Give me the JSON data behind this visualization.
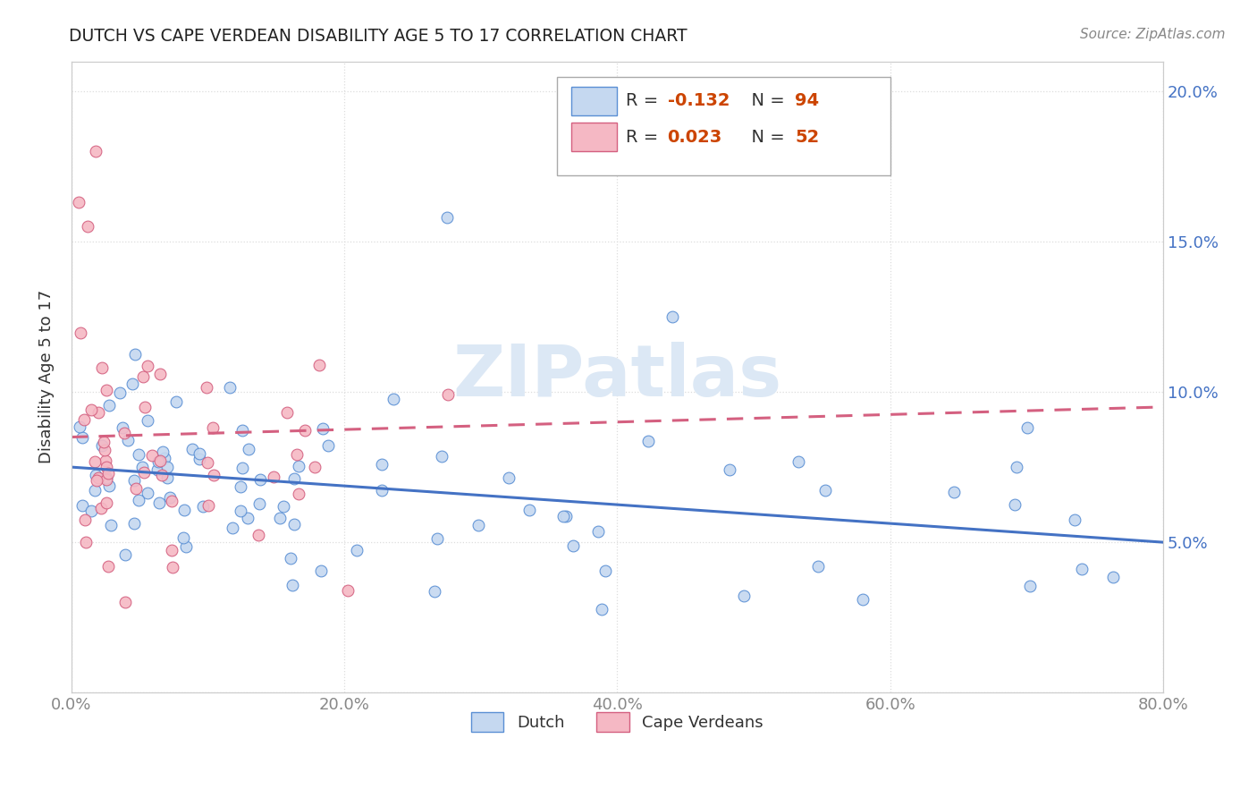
{
  "title": "DUTCH VS CAPE VERDEAN DISABILITY AGE 5 TO 17 CORRELATION CHART",
  "source": "Source: ZipAtlas.com",
  "ylabel_text": "Disability Age 5 to 17",
  "x_min": 0.0,
  "x_max": 0.8,
  "y_min": 0.0,
  "y_max": 0.21,
  "x_ticks": [
    0.0,
    0.2,
    0.4,
    0.6,
    0.8
  ],
  "x_tick_labels": [
    "0.0%",
    "20.0%",
    "40.0%",
    "60.0%",
    "80.0%"
  ],
  "y_ticks": [
    0.0,
    0.05,
    0.1,
    0.15,
    0.2
  ],
  "y_tick_labels_right": [
    "",
    "5.0%",
    "10.0%",
    "15.0%",
    "20.0%"
  ],
  "dutch_fill": "#c5d8f0",
  "dutch_edge": "#5a8fd4",
  "cape_fill": "#f5b8c4",
  "cape_edge": "#d46080",
  "dutch_line_color": "#4472c4",
  "cape_line_color": "#d46080",
  "watermark_color": "#dce8f5",
  "legend_dutch_r": "-0.132",
  "legend_dutch_n": "94",
  "legend_cape_r": "0.023",
  "legend_cape_n": "52",
  "r_n_color": "#cc4400",
  "label_color": "#333333",
  "tick_color": "#888888",
  "grid_color": "#dddddd",
  "spine_color": "#cccccc"
}
